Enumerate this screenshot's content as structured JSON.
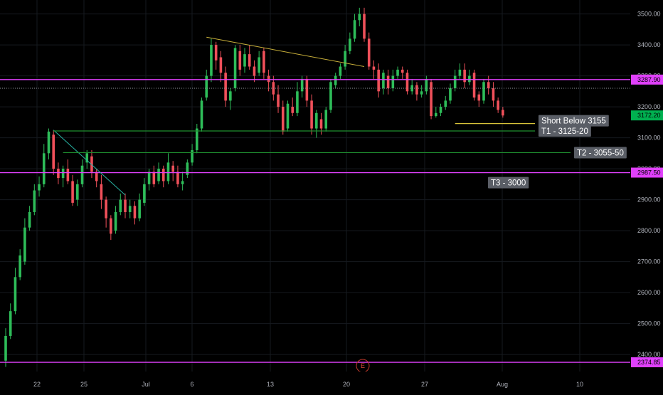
{
  "chart_data": {
    "type": "candlestick",
    "colors": {
      "up": "#2ebd59",
      "down": "#f0505a",
      "background": "#000000",
      "grid": "#161a1f",
      "magenta_level": "#e040fb",
      "target_line": "#1f8f2f",
      "entry_line": "#d8c33a",
      "trendline_down": "#27b3a3",
      "trendline_top": "#c9b03a",
      "last_price_tag": "#00b050",
      "annotation_bg": "#5a5e66"
    },
    "y_axis": {
      "min": 2345,
      "max": 3545,
      "ticks": [
        "2400.00",
        "2500.00",
        "2600.00",
        "2700.00",
        "2800.00",
        "2900.00",
        "3000.00",
        "3100.00",
        "3200.00",
        "3300.00",
        "3400.00",
        "3500.00"
      ]
    },
    "x_axis": {
      "labels": [
        {
          "text": "22",
          "index": 2
        },
        {
          "text": "25",
          "index": 5
        },
        {
          "text": "Jul",
          "index": 10
        },
        {
          "text": "6",
          "index": 13
        },
        {
          "text": "13",
          "index": 18
        },
        {
          "text": "20",
          "index": 23
        },
        {
          "text": "27",
          "index": 28
        },
        {
          "text": "Aug",
          "index": 33
        },
        {
          "text": "10",
          "index": 38
        }
      ]
    },
    "candles": [
      [
        2380,
        2460,
        2485,
        2360
      ],
      [
        2460,
        2540,
        2565,
        2450
      ],
      [
        2540,
        2650,
        2680,
        2530
      ],
      [
        2650,
        2720,
        2740,
        2640
      ],
      [
        2700,
        2810,
        2840,
        2690
      ],
      [
        2810,
        2860,
        2880,
        2800
      ],
      [
        2860,
        2930,
        2950,
        2850
      ],
      [
        2930,
        2950,
        2975,
        2910
      ],
      [
        2950,
        3050,
        3080,
        2940
      ],
      [
        3050,
        3120,
        3130,
        3030
      ],
      [
        3110,
        3000,
        3125,
        2980
      ],
      [
        3000,
        2970,
        3020,
        2950
      ],
      [
        2970,
        3000,
        3010,
        2940
      ],
      [
        3000,
        2960,
        3030,
        2950
      ],
      [
        2960,
        2890,
        2980,
        2880
      ],
      [
        2900,
        2950,
        2965,
        2880
      ],
      [
        2950,
        3010,
        3030,
        2940
      ],
      [
        3020,
        3050,
        3060,
        3000
      ],
      [
        3040,
        2990,
        3060,
        2970
      ],
      [
        2990,
        2960,
        3000,
        2940
      ],
      [
        2950,
        2900,
        2980,
        2870
      ],
      [
        2900,
        2840,
        2910,
        2810
      ],
      [
        2840,
        2790,
        2850,
        2770
      ],
      [
        2800,
        2860,
        2880,
        2790
      ],
      [
        2860,
        2900,
        2920,
        2850
      ],
      [
        2900,
        2860,
        2920,
        2840
      ],
      [
        2860,
        2880,
        2900,
        2840
      ],
      [
        2880,
        2840,
        2895,
        2820
      ],
      [
        2840,
        2900,
        2920,
        2830
      ],
      [
        2890,
        2950,
        2970,
        2880
      ],
      [
        2950,
        2990,
        3000,
        2930
      ],
      [
        2990,
        2950,
        3010,
        2940
      ],
      [
        2960,
        3000,
        3020,
        2950
      ],
      [
        3000,
        2960,
        3010,
        2940
      ],
      [
        2960,
        3020,
        3050,
        2950
      ],
      [
        3010,
        2990,
        3025,
        2960
      ],
      [
        2990,
        2950,
        3010,
        2940
      ],
      [
        2950,
        2960,
        2990,
        2930
      ],
      [
        2980,
        3020,
        3030,
        2970
      ],
      [
        3020,
        3060,
        3080,
        3010
      ],
      [
        3060,
        3130,
        3145,
        3050
      ],
      [
        3130,
        3220,
        3230,
        3120
      ],
      [
        3230,
        3300,
        3320,
        3220
      ],
      [
        3300,
        3400,
        3420,
        3280
      ],
      [
        3400,
        3350,
        3410,
        3320
      ],
      [
        3360,
        3310,
        3380,
        3280
      ],
      [
        3310,
        3220,
        3330,
        3200
      ],
      [
        3220,
        3250,
        3260,
        3190
      ],
      [
        3260,
        3390,
        3400,
        3250
      ],
      [
        3380,
        3320,
        3400,
        3300
      ],
      [
        3330,
        3370,
        3390,
        3310
      ],
      [
        3370,
        3330,
        3400,
        3320
      ],
      [
        3330,
        3300,
        3350,
        3280
      ],
      [
        3310,
        3360,
        3380,
        3300
      ],
      [
        3380,
        3310,
        3390,
        3290
      ],
      [
        3300,
        3280,
        3320,
        3250
      ],
      [
        3280,
        3240,
        3300,
        3220
      ],
      [
        3240,
        3200,
        3270,
        3180
      ],
      [
        3200,
        3120,
        3220,
        3110
      ],
      [
        3130,
        3210,
        3220,
        3120
      ],
      [
        3200,
        3180,
        3230,
        3170
      ],
      [
        3180,
        3250,
        3280,
        3170
      ],
      [
        3250,
        3290,
        3300,
        3230
      ],
      [
        3290,
        3220,
        3300,
        3200
      ],
      [
        3220,
        3130,
        3240,
        3110
      ],
      [
        3130,
        3180,
        3190,
        3100
      ],
      [
        3160,
        3130,
        3180,
        3110
      ],
      [
        3130,
        3190,
        3200,
        3120
      ],
      [
        3190,
        3280,
        3290,
        3180
      ],
      [
        3270,
        3300,
        3310,
        3260
      ],
      [
        3300,
        3330,
        3340,
        3290
      ],
      [
        3330,
        3380,
        3400,
        3320
      ],
      [
        3380,
        3420,
        3440,
        3370
      ],
      [
        3420,
        3480,
        3500,
        3410
      ],
      [
        3480,
        3500,
        3520,
        3460
      ],
      [
        3500,
        3420,
        3520,
        3410
      ],
      [
        3420,
        3330,
        3440,
        3320
      ],
      [
        3330,
        3320,
        3350,
        3290
      ],
      [
        3320,
        3250,
        3340,
        3230
      ],
      [
        3260,
        3310,
        3320,
        3240
      ],
      [
        3300,
        3260,
        3320,
        3240
      ],
      [
        3260,
        3300,
        3320,
        3250
      ],
      [
        3300,
        3320,
        3330,
        3290
      ],
      [
        3320,
        3310,
        3330,
        3290
      ],
      [
        3310,
        3250,
        3320,
        3240
      ],
      [
        3250,
        3270,
        3290,
        3240
      ],
      [
        3270,
        3240,
        3280,
        3220
      ],
      [
        3240,
        3250,
        3270,
        3230
      ],
      [
        3250,
        3290,
        3300,
        3240
      ],
      [
        3280,
        3170,
        3290,
        3160
      ],
      [
        3170,
        3180,
        3200,
        3165
      ],
      [
        3180,
        3200,
        3210,
        3170
      ],
      [
        3200,
        3220,
        3235,
        3190
      ],
      [
        3220,
        3260,
        3275,
        3210
      ],
      [
        3260,
        3300,
        3320,
        3250
      ],
      [
        3300,
        3320,
        3340,
        3290
      ],
      [
        3320,
        3280,
        3340,
        3260
      ],
      [
        3280,
        3300,
        3320,
        3270
      ],
      [
        3310,
        3230,
        3320,
        3220
      ],
      [
        3240,
        3220,
        3250,
        3200
      ],
      [
        3220,
        3280,
        3290,
        3210
      ],
      [
        3280,
        3260,
        3300,
        3240
      ],
      [
        3260,
        3220,
        3280,
        3200
      ],
      [
        3220,
        3190,
        3230,
        3180
      ],
      [
        3190,
        3172,
        3200,
        3165
      ]
    ],
    "levels": [
      {
        "name": "level-3287",
        "price": 3287.9,
        "label": "3287.90",
        "style": "magenta"
      },
      {
        "name": "level-2987",
        "price": 2987.5,
        "label": "2987.50",
        "style": "magenta"
      },
      {
        "name": "level-2374",
        "price": 2374.85,
        "label": "2374.85",
        "style": "magenta"
      }
    ],
    "last_price": {
      "price": 3260,
      "label": "3172.20",
      "tag_price": 3172.2
    },
    "annotations": [
      {
        "name": "short-below",
        "text": "Short Below 3155",
        "price": 3155,
        "line_from_index": 94,
        "line_to_index": 106,
        "line": "entry"
      },
      {
        "name": "target-1",
        "text": "T1 - 3125-20",
        "price": 3122,
        "line_from_index": 10,
        "line_to_index": 105,
        "line": "target"
      },
      {
        "name": "target-2",
        "text": "T2 - 3055-50",
        "price": 3052,
        "line_from_index": 12,
        "line_to_index": 112,
        "line": "target"
      },
      {
        "name": "target-3",
        "text": "T3 - 3000",
        "price": 2955,
        "line": "none"
      }
    ],
    "trendlines": [
      {
        "name": "trendline-falling",
        "from": {
          "index": 10,
          "price": 3125
        },
        "to": {
          "index": 25,
          "price": 2915
        },
        "style": "trendline_down"
      },
      {
        "name": "trendline-top",
        "from": {
          "index": 42,
          "price": 3425
        },
        "to": {
          "index": 75,
          "price": 3330
        },
        "style": "trendline_top"
      }
    ],
    "earnings_marker": {
      "text": "E",
      "index": 75
    }
  }
}
